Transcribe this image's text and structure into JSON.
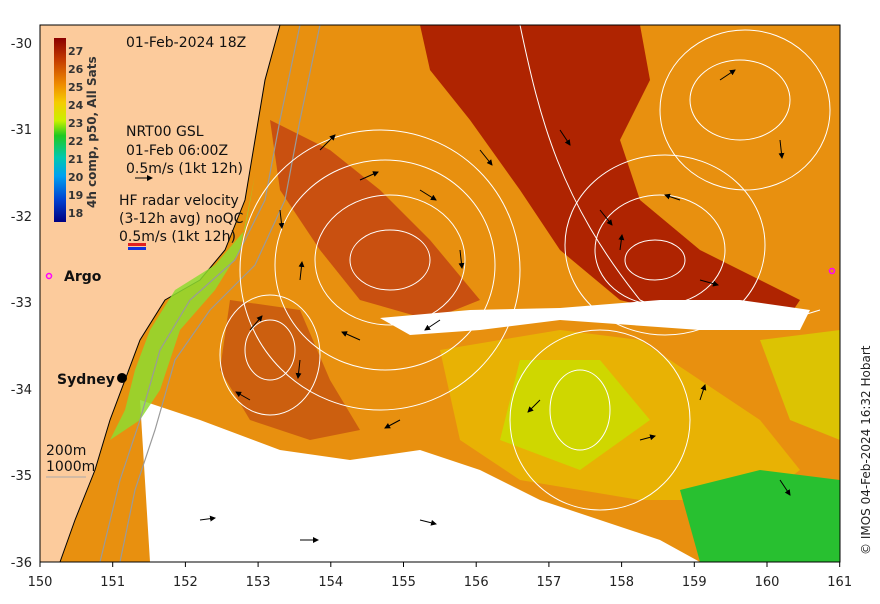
{
  "map": {
    "timestamp": "01-Feb-2024 18Z",
    "legend": {
      "title": "4h comp, p50, All Sats",
      "ticks": [
        "27",
        "26",
        "25",
        "24",
        "23",
        "22",
        "21",
        "20",
        "19",
        "18"
      ],
      "colors": [
        "#8b0000",
        "#c43c00",
        "#e87d00",
        "#f5c400",
        "#c8f000",
        "#28c828",
        "#00c8a0",
        "#00a0f0",
        "#0040d0",
        "#000080"
      ]
    },
    "gsl": {
      "line1": "NRT00 GSL",
      "line2": "01-Feb 06:00Z",
      "line3": "0.5m/s (1kt 12h)"
    },
    "hf_radar": {
      "line1": "HF radar velocity",
      "line2": "(3-12h avg) noQC",
      "line3": "0.5m/s (1kt 12h)"
    },
    "argo_label": "Argo",
    "city_label": "Sydney",
    "isobaths": {
      "shallow": "200m",
      "deep": "1000m"
    },
    "credit": "© IMOS 04-Feb-2024 16:32 Hobart",
    "y_ticks": [
      "-30",
      "-31",
      "-32",
      "-33",
      "-34",
      "-35",
      "-36"
    ],
    "x_ticks": [
      "150",
      "151",
      "152",
      "153",
      "154",
      "155",
      "156",
      "157",
      "158",
      "159",
      "160",
      "161"
    ]
  }
}
